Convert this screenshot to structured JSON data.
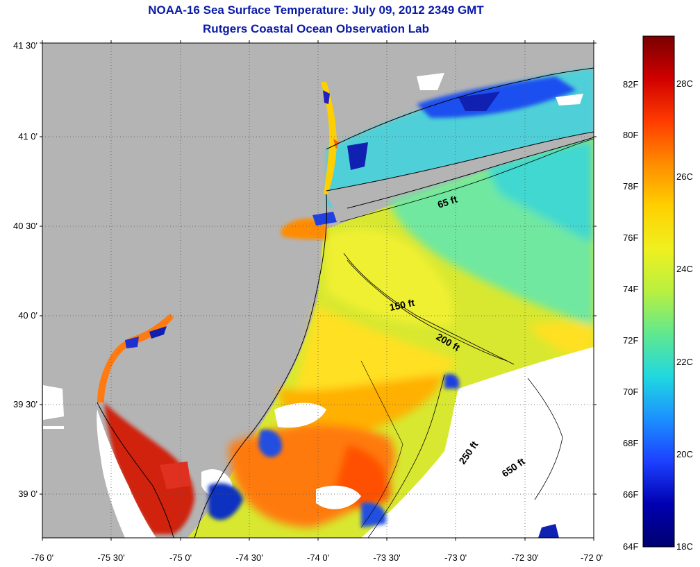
{
  "title_line1": "NOAA-16 Sea Surface Temperature:  July 09, 2012 2349 GMT",
  "title_line2": "Rutgers Coastal Ocean Observation Lab",
  "map": {
    "lat_ticks": [
      "41 30'",
      "41 0'",
      "40 30'",
      "40 0'",
      "39 30'",
      "39 0'"
    ],
    "lon_ticks": [
      "-76 0'",
      "-75 30'",
      "-75 0'",
      "-74 30'",
      "-74 0'",
      "-73 30'",
      "-73 0'",
      "-72 30'",
      "-72 0'"
    ],
    "lat_range": [
      38.78,
      41.5
    ],
    "lon_range": [
      -76.0,
      -72.0
    ],
    "depth_contours": [
      "65 ft",
      "150 ft",
      "200 ft",
      "250 ft",
      "650 ft"
    ],
    "colors": {
      "land": "#b4b4b4",
      "cloud": "#ffffff",
      "coast": "#000000"
    }
  },
  "colorbar": {
    "f_ticks": [
      "82F",
      "80F",
      "78F",
      "76F",
      "74F",
      "72F",
      "70F",
      "68F",
      "66F",
      "64F"
    ],
    "c_ticks": [
      "28C",
      "26C",
      "24C",
      "22C",
      "20C",
      "18C"
    ],
    "range_c": [
      18,
      29.5
    ],
    "gradient": [
      "#7a0000",
      "#d00000",
      "#ff3c00",
      "#ff8c00",
      "#ffd000",
      "#f0f020",
      "#b8f040",
      "#60e890",
      "#20d8e0",
      "#1c90ff",
      "#1c40ff",
      "#0000b0",
      "#000070"
    ]
  }
}
